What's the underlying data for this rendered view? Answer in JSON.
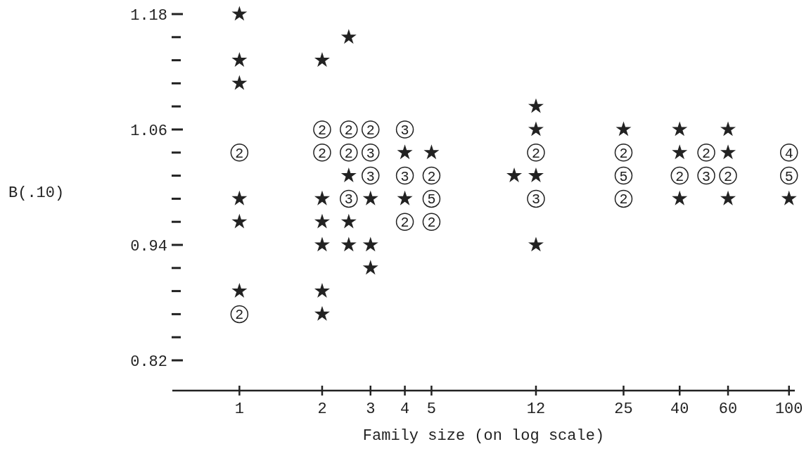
{
  "chart_data": {
    "type": "scatter",
    "xlabel": "Family size (on log scale)",
    "ylabel": "B(.10)",
    "log": "x",
    "marker": "star",
    "grid": false,
    "xlim": [
      0.57,
      105
    ],
    "xticks": [
      1,
      2,
      3,
      4,
      5,
      12,
      25,
      40,
      60,
      100
    ],
    "ylim": [
      0.82,
      1.18
    ],
    "yticks": [
      0.82,
      {
        "value": 0.844,
        "label": null
      },
      {
        "value": 0.868,
        "label": null
      },
      {
        "value": 0.892,
        "label": null
      },
      {
        "value": 0.916,
        "label": null
      },
      0.94,
      {
        "value": 0.964,
        "label": null
      },
      {
        "value": 0.988,
        "label": null
      },
      {
        "value": 1.012,
        "label": null
      },
      {
        "value": 1.036,
        "label": null
      },
      1.06,
      {
        "value": 1.084,
        "label": null
      },
      {
        "value": 1.108,
        "label": null
      },
      {
        "value": 1.132,
        "label": null
      },
      {
        "value": 1.156,
        "label": null
      },
      1.18
    ],
    "series": [
      {
        "color": "#222222",
        "x": [
          1,
          1,
          1,
          1,
          1,
          1,
          2,
          2,
          2,
          2,
          2,
          2,
          2.5,
          2.5,
          2.5,
          2.5,
          3,
          3,
          3,
          4,
          4,
          5,
          10,
          12,
          12,
          12,
          12,
          25,
          40,
          40,
          40,
          60,
          60,
          60,
          100
        ],
        "values": [
          1.18,
          1.132,
          1.108,
          0.988,
          0.964,
          0.892,
          1.132,
          0.988,
          0.964,
          0.94,
          0.892,
          0.868,
          1.156,
          1.012,
          0.964,
          0.94,
          0.988,
          0.916,
          0.94,
          1.036,
          0.988,
          1.036,
          1.012,
          1.084,
          1.06,
          1.012,
          0.94,
          1.06,
          1.06,
          1.036,
          0.988,
          1.06,
          1.036,
          0.988,
          0.988
        ]
      },
      {
        "color": "#222222",
        "marker": "circle",
        "x": [
          1,
          1,
          2,
          2,
          2.5,
          2.5,
          2.5,
          3,
          3,
          3,
          4,
          4,
          4,
          5,
          5,
          5,
          12,
          12,
          25,
          25,
          25,
          40,
          50,
          50,
          60,
          100,
          100
        ],
        "values": [
          1.036,
          0.868,
          1.06,
          1.036,
          1.06,
          1.036,
          0.988,
          1.06,
          1.036,
          1.012,
          1.06,
          1.012,
          0.964,
          1.012,
          0.988,
          0.964,
          1.036,
          0.988,
          1.036,
          1.012,
          0.988,
          1.012,
          1.036,
          1.012,
          1.012,
          1.036,
          1.012
        ]
      }
    ],
    "annotations": [
      {
        "text": "2",
        "x": 1,
        "y": 1.036
      },
      {
        "text": "2",
        "x": 1,
        "y": 0.868
      },
      {
        "text": "2",
        "x": 2,
        "y": 1.06
      },
      {
        "text": "2",
        "x": 2,
        "y": 1.036
      },
      {
        "text": "2",
        "x": 2.5,
        "y": 1.06
      },
      {
        "text": "2",
        "x": 2.5,
        "y": 1.036
      },
      {
        "text": "3",
        "x": 2.5,
        "y": 0.988
      },
      {
        "text": "2",
        "x": 3,
        "y": 1.06
      },
      {
        "text": "3",
        "x": 3,
        "y": 1.036
      },
      {
        "text": "3",
        "x": 3,
        "y": 1.012
      },
      {
        "text": "3",
        "x": 4,
        "y": 1.06
      },
      {
        "text": "3",
        "x": 4,
        "y": 1.012
      },
      {
        "text": "2",
        "x": 4,
        "y": 0.964
      },
      {
        "text": "2",
        "x": 5,
        "y": 1.012
      },
      {
        "text": "5",
        "x": 5,
        "y": 0.988
      },
      {
        "text": "2",
        "x": 5,
        "y": 0.964
      },
      {
        "text": "2",
        "x": 12,
        "y": 1.036
      },
      {
        "text": "3",
        "x": 12,
        "y": 0.988
      },
      {
        "text": "2",
        "x": 25,
        "y": 1.036
      },
      {
        "text": "5",
        "x": 25,
        "y": 1.012
      },
      {
        "text": "2",
        "x": 25,
        "y": 0.988
      },
      {
        "text": "2",
        "x": 40,
        "y": 1.012
      },
      {
        "text": "2",
        "x": 50,
        "y": 1.036
      },
      {
        "text": "3",
        "x": 50,
        "y": 1.012
      },
      {
        "text": "2",
        "x": 60,
        "y": 1.012
      },
      {
        "text": "4",
        "x": 100,
        "y": 1.036
      },
      {
        "text": "5",
        "x": 100,
        "y": 1.012
      }
    ]
  }
}
